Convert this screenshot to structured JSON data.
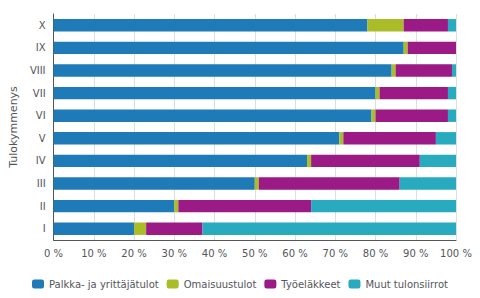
{
  "chart_data": {
    "type": "bar",
    "orientation": "horizontal",
    "stacked": true,
    "categories": [
      "I",
      "II",
      "III",
      "IV",
      "V",
      "VI",
      "VII",
      "VIII",
      "IX",
      "X"
    ],
    "series": [
      {
        "name": "Palkka- ja yrittäjätulot",
        "color": "#1F7BB8",
        "values": [
          20,
          30,
          50,
          63,
          71,
          79,
          80,
          84,
          87,
          78
        ]
      },
      {
        "name": "Omaisuustulot",
        "color": "#AABC28",
        "values": [
          3,
          1,
          1,
          1,
          1,
          1,
          1,
          1,
          1,
          9
        ]
      },
      {
        "name": "Työeläkkeet",
        "color": "#9B1A85",
        "values": [
          14,
          33,
          35,
          27,
          23,
          18,
          17,
          14,
          12,
          11
        ]
      },
      {
        "name": "Muut tulonsiirrot",
        "color": "#28AABF",
        "values": [
          63,
          36,
          14,
          9,
          5,
          2,
          2,
          1,
          0,
          2
        ]
      }
    ],
    "ylabel": "Tulokymmenys",
    "xlim": [
      0,
      100
    ],
    "xticks": [
      {
        "value": 0,
        "label": "0 %"
      },
      {
        "value": 10,
        "label": "10 %"
      },
      {
        "value": 20,
        "label": "20 %"
      },
      {
        "value": 30,
        "label": "30 %"
      },
      {
        "value": 40,
        "label": "40 %"
      },
      {
        "value": 50,
        "label": "50 %"
      },
      {
        "value": 60,
        "label": "60 %"
      },
      {
        "value": 70,
        "label": "70 %"
      },
      {
        "value": 80,
        "label": "80 %"
      },
      {
        "value": 90,
        "label": "90 %"
      },
      {
        "value": 100,
        "label": "100 %"
      }
    ],
    "grid": true,
    "legend": "bottom"
  }
}
